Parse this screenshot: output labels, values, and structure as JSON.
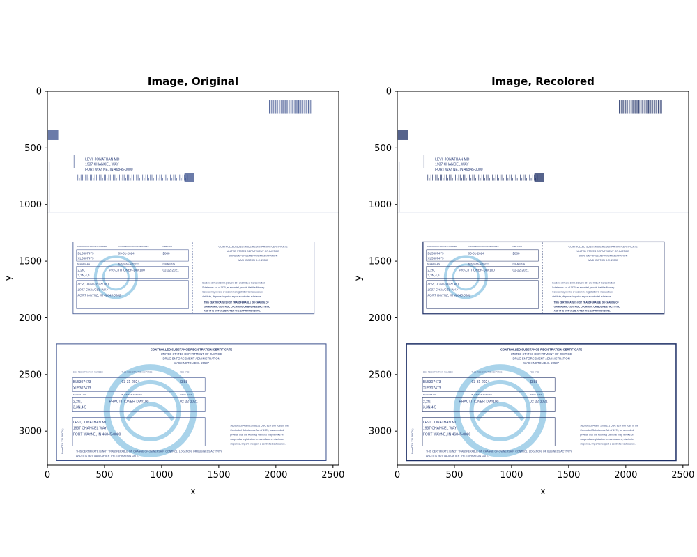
{
  "chart_data": [
    {
      "type": "image",
      "title": "Image, Original",
      "xlabel": "x",
      "ylabel": "y",
      "xlim": [
        0,
        2550
      ],
      "ylim": [
        3300,
        0
      ],
      "xticks": [
        "0",
        "500",
        "1000",
        "1500",
        "2000",
        "2500"
      ],
      "yticks": [
        "0",
        "500",
        "1000",
        "1500",
        "2000",
        "2500",
        "3000"
      ],
      "ink_color": "#3a4f8c",
      "seal_color": "#a9d3ea"
    },
    {
      "type": "image",
      "title": "Image, Recolored",
      "xlabel": "x",
      "ylabel": "y",
      "xlim": [
        0,
        2550
      ],
      "ylim": [
        3300,
        0
      ],
      "xticks": [
        "0",
        "500",
        "1000",
        "1500",
        "2000",
        "2500"
      ],
      "yticks": [
        "0",
        "500",
        "1000",
        "1500",
        "2000",
        "2500",
        "3000"
      ],
      "ink_color": "#1e2f66",
      "seal_color": "#a9d3ea"
    }
  ],
  "document": {
    "address": [
      "LEVI, JONATHAN MD",
      "1937 CHANCEL WAY",
      "FORT WAYNE, IN  46845-0000"
    ],
    "small_cert": {
      "head_dea": "DEA REGISTRATION NUMBER",
      "head_expires": "THIS REGISTRATION EXPIRES",
      "head_fee": "FEE PAID",
      "reg_numbers": [
        "BL5307473",
        "XL5307473"
      ],
      "expires": "03-31-2024",
      "fee": "$888",
      "head_schedules": "SCHEDULES",
      "head_activity": "BUSINESS ACTIVITY",
      "head_issue": "ISSUE DATE",
      "schedules": [
        "2,2N,",
        "3,3N,4,5"
      ],
      "activity": "PRACTITIONER-DW/100",
      "issue": "02-22-2021",
      "title_lines": [
        "CONTROLLED SUBSTANCE REGISTRATION CERTIFICATE",
        "UNITED STATES DEPARTMENT OF JUSTICE",
        "DRUG ENFORCEMENT ADMINISTRATION",
        "WASHINGTON D.C. 20537"
      ],
      "body_lines": [
        "Sections 304 and 1008 (21 USC 824 and 958) of the Controlled",
        "Substances Act of 1970, as amended, provide that the Attorney",
        "General may revoke or suspend a registration to manufacture,",
        "distribute, dispense, import or export a controlled substance."
      ],
      "warning_lines": [
        "THIS CERTIFICATE IS NOT TRANSFERABLE ON CHANGE OF",
        "OWNERSHIP, CONTROL, LOCATION, OR BUSINESS ACTIVITY,",
        "AND IT IS NOT VALID AFTER THE EXPIRATION DATE."
      ]
    },
    "large_cert": {
      "title_lines": [
        "CONTROLLED SUBSTANCE REGISTRATION CERTIFICATE",
        "UNITED STATES DEPARTMENT OF JUSTICE",
        "DRUG ENFORCEMENT ADMINISTRATION",
        "WASHINGTON D.C. 20537"
      ],
      "body_lines": [
        "Sections 304 and 1008 (21 USC 824 and 958) of the",
        "Controlled Substances Act of 1970, as amended,",
        "provide that the Attorney General may revoke or",
        "suspend a registration to manufacture, distribute,",
        "dispense, import or export a controlled substance."
      ],
      "warning_lines": [
        "THIS CERTIFICATE IS NOT TRANSFERABLE ON CHANGE OF OWNERSHIP, CONTROL, LOCATION, OR BUSINESS ACTIVITY,",
        "AND IT IS NOT VALID AFTER THE EXPIRATION DATE."
      ],
      "form_label": "Form DEA-223 (9/2016)"
    }
  }
}
